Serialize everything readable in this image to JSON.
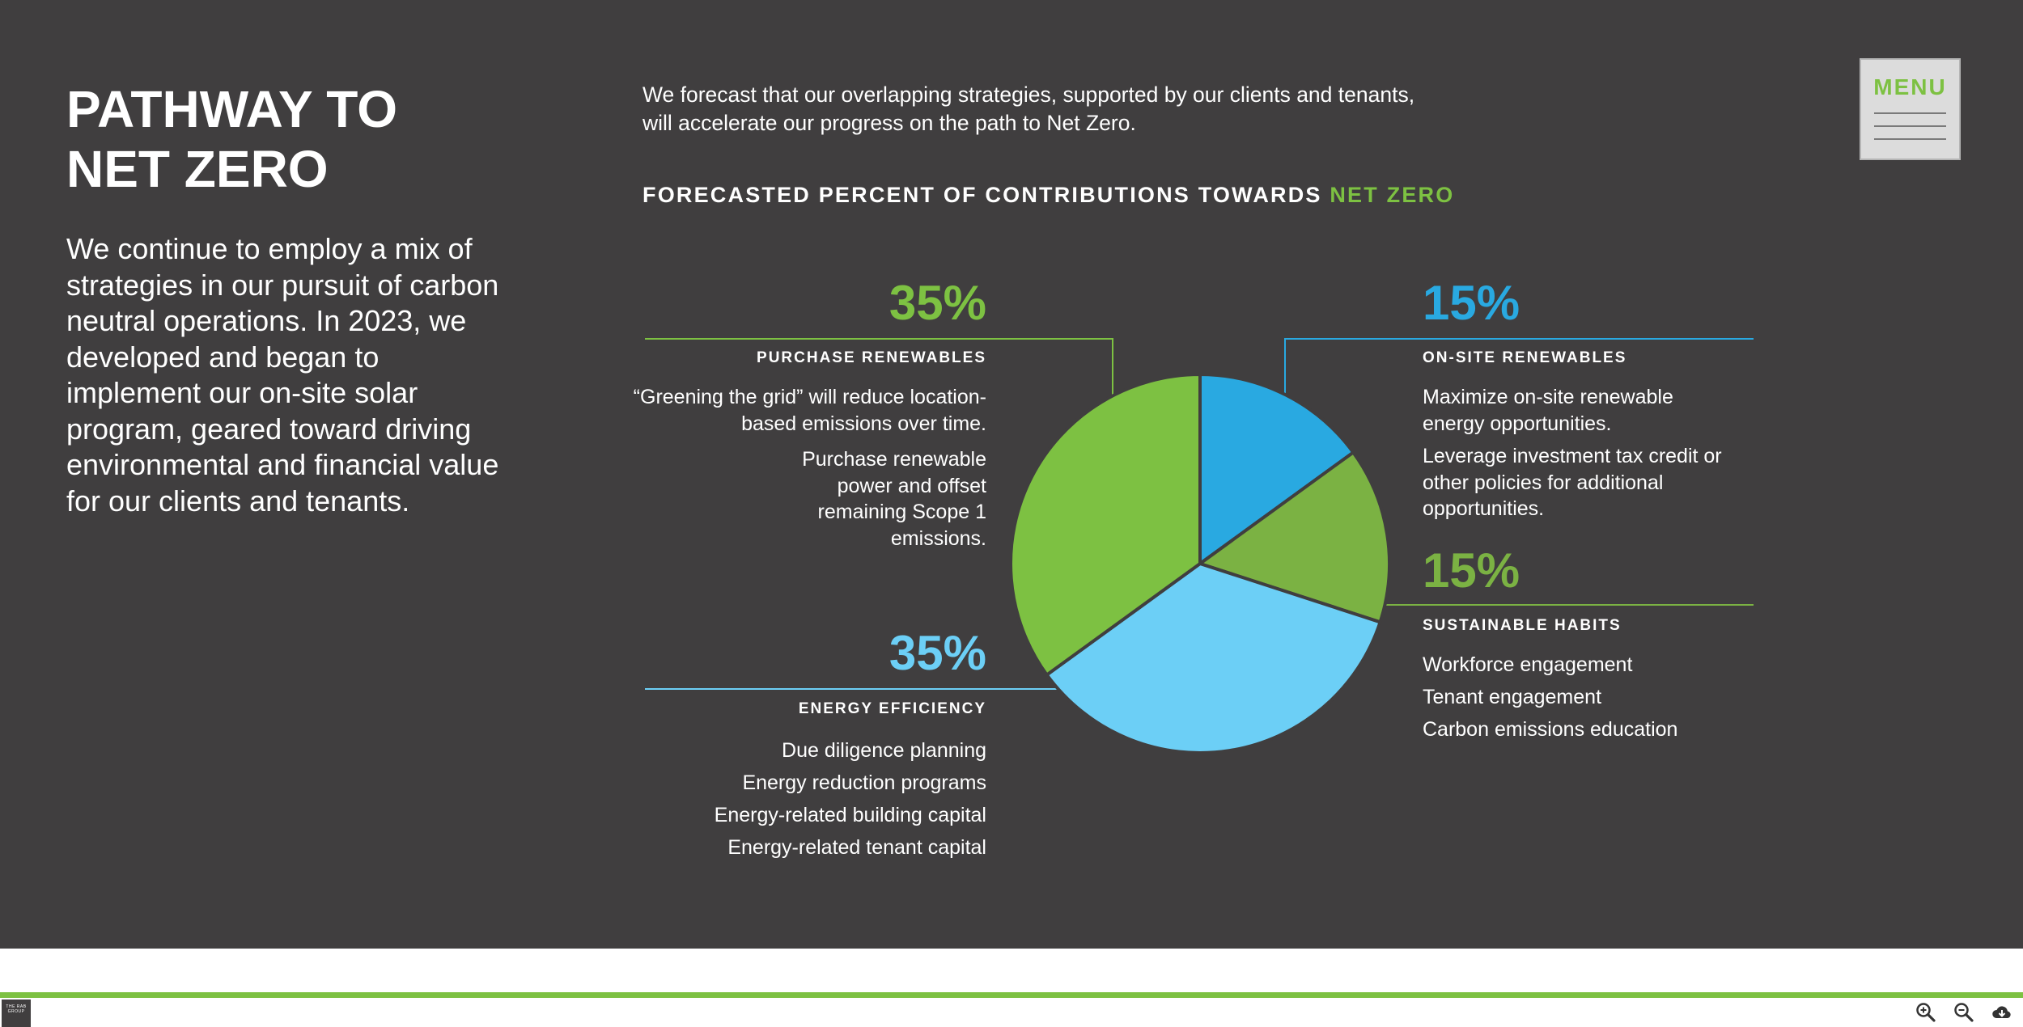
{
  "slide": {
    "title_line1": "PATHWAY TO",
    "title_line2": "NET ZERO",
    "body": "We continue to employ a mix of strategies in our pursuit of carbon neutral operations. In 2023, we developed and began to implement our on-site solar program, geared toward driving environmental and financial value for our clients and tenants.",
    "intro_line1": "We forecast that our overlapping strategies, supported by our clients and tenants,",
    "intro_line2": "will accelerate our progress on the path to Net Zero.",
    "chart_heading_main": "FORECASTED PERCENT OF CONTRIBUTIONS TOWARDS ",
    "chart_heading_accent": "NET ZERO"
  },
  "menu": {
    "label": "MENU",
    "icon": "hamburger-icon"
  },
  "segments": {
    "purchase": {
      "percent": "35%",
      "label": "PURCHASE RENEWABLES",
      "desc1": "“Greening the grid” will reduce location-based emissions over time.",
      "desc2": "Purchase renewable power and offset remaining Scope 1 emissions.",
      "color": "#7dc142"
    },
    "onsite": {
      "percent": "15%",
      "label": "ON-SITE RENEWABLES",
      "desc1": "Maximize on-site renewable energy opportunities.",
      "desc2": "Leverage investment tax credit or other policies for additional opportunities.",
      "color": "#29a9e1"
    },
    "habits": {
      "percent": "15%",
      "label": "SUSTAINABLE HABITS",
      "items": [
        "Workforce engagement",
        "Tenant engagement",
        "Carbon emissions education"
      ],
      "color": "#7bb243"
    },
    "efficiency": {
      "percent": "35%",
      "label": "ENERGY EFFICIENCY",
      "items": [
        "Due diligence planning",
        "Energy reduction programs",
        "Energy-related building capital",
        "Energy-related tenant capital"
      ],
      "color": "#6ccff6"
    }
  },
  "chart_data": {
    "type": "pie",
    "title": "FORECASTED PERCENT OF CONTRIBUTIONS TOWARDS NET ZERO",
    "slices": [
      {
        "label": "ON-SITE RENEWABLES",
        "value": 15,
        "color": "#29a9e1"
      },
      {
        "label": "SUSTAINABLE HABITS",
        "value": 15,
        "color": "#7bb243"
      },
      {
        "label": "ENERGY EFFICIENCY",
        "value": 35,
        "color": "#6ccff6"
      },
      {
        "label": "PURCHASE RENEWABLES",
        "value": 35,
        "color": "#7dc142"
      }
    ],
    "start": "12 o'clock",
    "direction": "clockwise"
  },
  "footer": {
    "logo_text": "THE RAB GROUP",
    "tools": [
      "zoom-in-icon",
      "zoom-out-icon",
      "download-icon"
    ]
  }
}
